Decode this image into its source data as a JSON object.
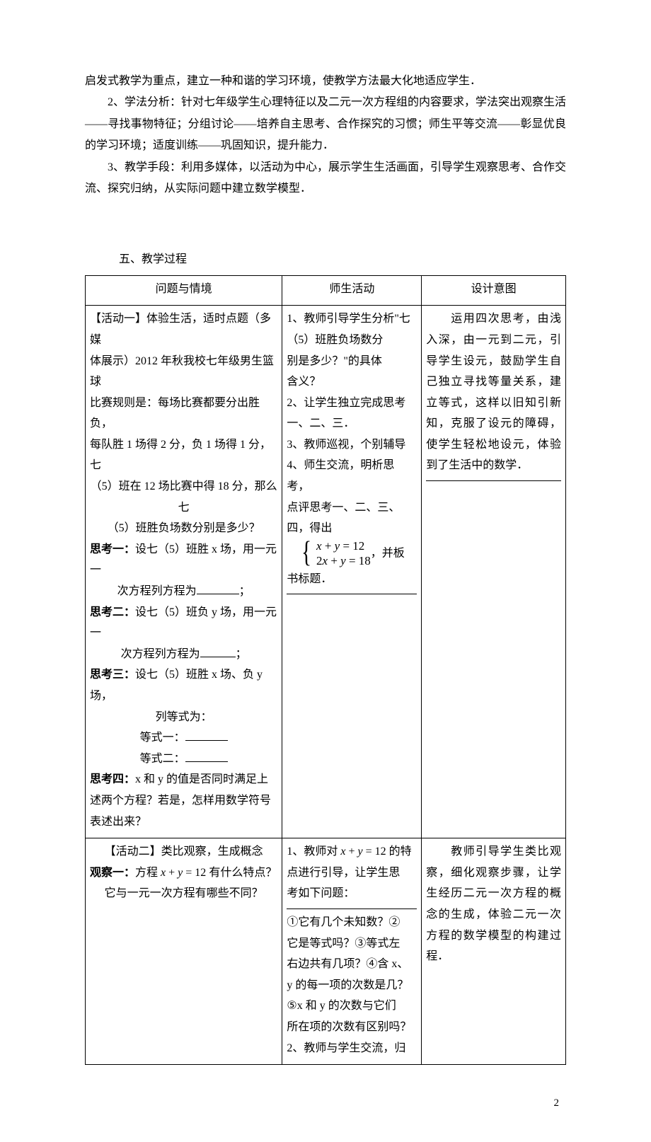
{
  "intro": {
    "p1": "启发式教学为重点，建立一种和谐的学习环境，使教学方法最大化地适应学生．",
    "p2": "2、学法分析：针对七年级学生心理特征以及二元一次方程组的内容要求，学法突出观察生活——寻找事物特征；分组讨论——培养自主思考、合作探究的习惯；师生平等交流——彰显优良的学习环境；适度训练——巩固知识，提升能力．",
    "p3": "3、教学手段：利用多媒体，以活动为中心，展示学生生活画面，引导学生观察思考、合作交流、探究归纳，从实际问题中建立数学模型．"
  },
  "section_title": "五、教学过程",
  "table": {
    "headers": [
      "问题与情境",
      "师生活动",
      "设计意图"
    ],
    "row1": {
      "c1": {
        "act_title_a": "【活动一】体验生活，适时点题（多媒",
        "act_title_b": "体展示）2012 年秋我校七年级男生篮球",
        "act_title_c": "比赛规则是：每场比赛都要分出胜负，",
        "act_title_d": "每队胜 1 场得 2 分，负 1 场得 1 分，七",
        "act_title_e": "（5）班在 12 场比赛中得 18 分，那么七",
        "act_title_f": "（5）班胜负场数分别是多少？",
        "sk1_label": "思考一：",
        "sk1_text_a": "设七（5）班胜 x 场，用一元一",
        "sk1_text_b": "次方程列方程为",
        "sk1_tail": "；",
        "sk2_label": "思考二：",
        "sk2_text_a": "设七（5）班负 y 场，用一元一",
        "sk2_text_b": "次方程列方程为",
        "sk2_tail": "；",
        "sk3_label": "思考三：",
        "sk3_text_a": "设七（5）班胜 x 场、负 y 场，",
        "sk3_text_b": "列等式为：",
        "eq1_label": "等式一：",
        "eq2_label": "等式二：",
        "sk4_label": "思考四：",
        "sk4_text": "x 和 y 的值是否同时满足上述两个方程？若是，怎样用数学符号表述出来？"
      },
      "c2": {
        "l1": "1、教师引导学生分析\"七",
        "l2": "（5）班胜负场数分",
        "l3": "别是多少？\"的具体",
        "l4": "含义？",
        "l5": "2、让学生独立完成思考",
        "l6": "一、二、三．",
        "l7": "3、教师巡视，个别辅导",
        "l8": "4、师生交流，明析思考，",
        "l9": "点评思考一、二、三、",
        "l10": "四，得出",
        "eq_top": "x + y = 12",
        "eq_bot": "2x + y = 18",
        "eq_tail": "，并板",
        "l11": "书标题．"
      },
      "c3": {
        "first": "　　运用四次思考，由",
        "rest": "浅入深，由一元到二元，引导学生设元，鼓励学生自己独立寻找等量关系，建立等式，这样以旧知引新知，克服了设元的障碍，使学生轻松地设元，体验到了生活中的数学．"
      }
    },
    "row2": {
      "c1": {
        "act_title": "【活动二】类比观察，生成概念",
        "obs_label": "观察一：",
        "obs_text_a": "方程",
        "obs_eq": "x + y = 12",
        "obs_text_b": "有什么特点？",
        "obs_text_c": "它与一元一次方程有哪些不同？"
      },
      "c2": {
        "l1a": "1、教师对",
        "l1eq": "x + y = 12",
        "l1b": "的特",
        "l2": "点进行引导，让学生思",
        "l3": "考如下问题：",
        "l4": "①它有几个未知数？②",
        "l5": "它是等式吗？③等式左",
        "l6": "右边共有几项？④含 x、",
        "l7": "y 的每一项的次数是几？",
        "l8": "⑤x 和 y 的次数与它们",
        "l9": "所在项的次数有区别吗？",
        "l10": "2、教师与学生交流，归"
      },
      "c3": {
        "first": "　　教师引导学生类",
        "rest": "比观察，细化观察步骤，让学生经历二元一次方程的概念的生成，体验二元一次方程的数学模型的构建过程．"
      }
    }
  },
  "page_number": "2"
}
